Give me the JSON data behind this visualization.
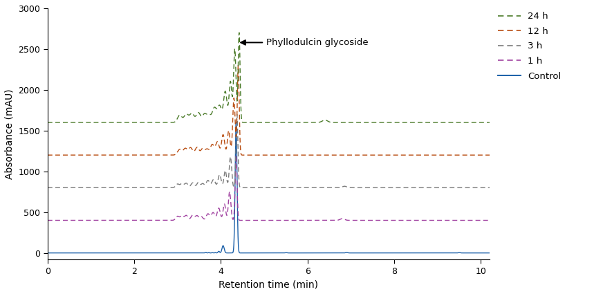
{
  "xlabel": "Retention time (min)",
  "ylabel": "Absorbance (mAU)",
  "xlim": [
    0,
    10.2
  ],
  "ylim": [
    -80,
    3000
  ],
  "yticks": [
    0,
    500,
    1000,
    1500,
    2000,
    2500,
    3000
  ],
  "xticks": [
    0,
    2,
    4,
    6,
    8,
    10
  ],
  "baselines": {
    "24h": 1600,
    "12h": 1200,
    "3h": 800,
    "1h": 400,
    "control": 0
  },
  "colors": {
    "24h": "#4a7a28",
    "12h": "#b84c10",
    "3h": "#7a7a7a",
    "1h": "#a040a0",
    "control": "#1a5fa8"
  },
  "legend_labels": [
    "24 h",
    "12 h",
    "3 h",
    "1 h",
    "Control"
  ],
  "legend_keys": [
    "24h",
    "12h",
    "3h",
    "1h",
    "control"
  ]
}
